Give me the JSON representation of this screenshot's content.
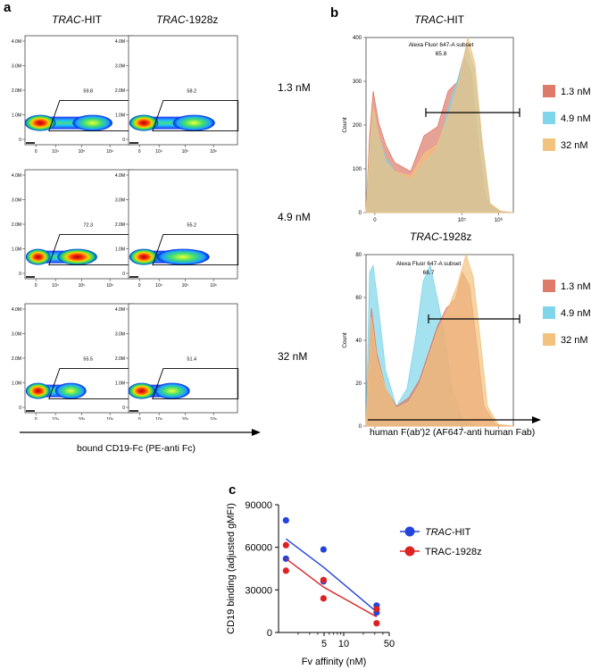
{
  "panel_a": {
    "letter": "a",
    "columns": [
      {
        "italic": "TRAC",
        "rest": "-HIT"
      },
      {
        "italic": "TRAC",
        "rest": "-1928z"
      }
    ],
    "rows": [
      "1.3 nM",
      "4.9 nM",
      "32 nM"
    ],
    "gate_values": [
      [
        "59.8",
        "58.2"
      ],
      [
        "72.3",
        "55.2"
      ],
      [
        "55.5",
        "51.4"
      ]
    ],
    "y_ticks": [
      "4.0M",
      "3.0M",
      "2.0M",
      "1.0M",
      "0"
    ],
    "x_ticks": [
      "0",
      "10⁴",
      "10⁵",
      "10⁶"
    ],
    "x_label": "bound CD19-Fc (PE-anti Fc)"
  },
  "panel_b": {
    "letter": "b",
    "subplots": [
      {
        "title_italic": "TRAC",
        "title_rest": "-HIT",
        "gate_name": "Alexa Fluor 647-A subset",
        "gate_value": "65.8",
        "y_ticks": [
          "400",
          "300",
          "200",
          "100",
          "0"
        ]
      },
      {
        "title_italic": "TRAC",
        "title_rest": "-1928z",
        "gate_name": "Alexa Fluor 647-A subset",
        "gate_value": "66.7",
        "y_ticks": [
          "80",
          "60",
          "40",
          "20",
          "0"
        ]
      }
    ],
    "y_label": "Count",
    "x_ticks": [
      "0",
      "10⁵",
      "10⁶"
    ],
    "legend": [
      {
        "label": "1.3 nM",
        "color": "#dd7a6a"
      },
      {
        "label": "4.9 nM",
        "color": "#7fd6ea"
      },
      {
        "label": "32 nM",
        "color": "#f2c27e"
      }
    ],
    "x_label": "human F(ab')2 (AF647-anti human Fab)"
  },
  "panel_c": {
    "letter": "c"
  },
  "chart_data": {
    "type": "scatter",
    "title": "",
    "xlabel": "Fv affinity (nM)",
    "ylabel": "CD19 binding (adjusted gMFI)",
    "x_scale": "log",
    "xlim": [
      1,
      50
    ],
    "ylim": [
      0,
      90000
    ],
    "x_ticks": [
      5,
      10,
      50
    ],
    "y_ticks": [
      0,
      30000,
      60000,
      90000
    ],
    "series": [
      {
        "name_italic": "TRAC",
        "name_rest": "-HIT",
        "color": "#2244dd",
        "points": [
          [
            1.3,
            79000
          ],
          [
            1.3,
            52000
          ],
          [
            4.9,
            58500
          ],
          [
            4.9,
            36000
          ],
          [
            32,
            19000
          ],
          [
            32,
            14000
          ]
        ],
        "fit": [
          [
            1.3,
            66000
          ],
          [
            4.9,
            46000
          ],
          [
            32,
            14500
          ]
        ]
      },
      {
        "name_italic": "",
        "name_rest": "TRAC-1928z",
        "color": "#dd2222",
        "points": [
          [
            1.3,
            61500
          ],
          [
            1.3,
            43500
          ],
          [
            4.9,
            37000
          ],
          [
            4.9,
            24000
          ],
          [
            32,
            16500
          ],
          [
            32,
            6500
          ]
        ],
        "fit": [
          [
            1.3,
            52000
          ],
          [
            4.9,
            32000
          ],
          [
            32,
            11000
          ]
        ]
      }
    ]
  }
}
